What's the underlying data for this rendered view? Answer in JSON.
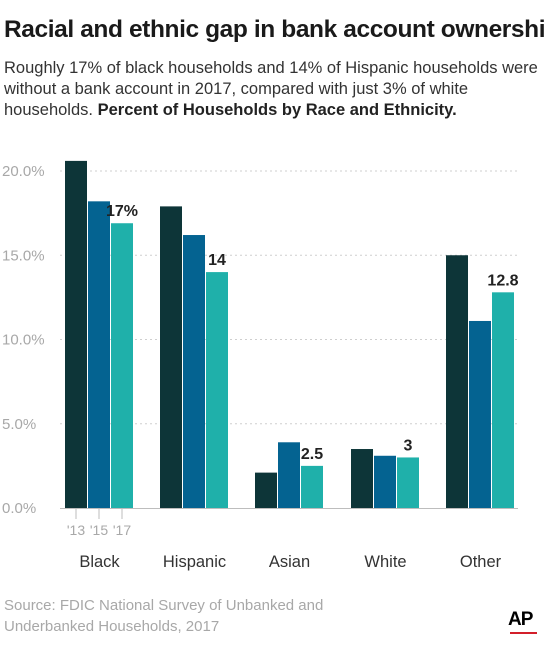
{
  "title": "Racial and ethnic gap in bank account ownership",
  "subtitle": {
    "line1": "Roughly 17% of black households and 14% of Hispanic households were",
    "line2": "without a bank account in 2017, compared with just 3% of white",
    "line3": "households.",
    "bold": "Percent of Households by Race and Ethnicity."
  },
  "source": {
    "line1": "Source: FDIC National Survey of Unbanked and",
    "line2": "Underbanked Households, 2017"
  },
  "logo": "AP",
  "colors": {
    "2013": "#0d3538",
    "2015": "#046391",
    "2017": "#1fb0aa",
    "grid": "#cfcfcf",
    "tick_text": "#a8a8a8",
    "category_text": "#333333",
    "logo_line": "#d31f2a"
  },
  "chart_data": {
    "type": "bar",
    "categories": [
      "Black",
      "Hispanic",
      "Asian",
      "White",
      "Other"
    ],
    "series": [
      {
        "name": "'13",
        "values": [
          20.6,
          17.9,
          2.1,
          3.5,
          15.0
        ]
      },
      {
        "name": "'15",
        "values": [
          18.2,
          16.2,
          3.9,
          3.1,
          11.1
        ]
      },
      {
        "name": "'17",
        "values": [
          16.9,
          14.0,
          2.5,
          3.0,
          12.8
        ]
      }
    ],
    "data_labels": [
      "17%",
      "14",
      "2.5",
      "3",
      "12.8"
    ],
    "yticks": [
      "0.0%",
      "5.0%",
      "10.0%",
      "15.0%",
      "20.0%"
    ],
    "ylim": [
      0,
      21
    ],
    "grid": true,
    "xlabel": "",
    "ylabel": ""
  }
}
